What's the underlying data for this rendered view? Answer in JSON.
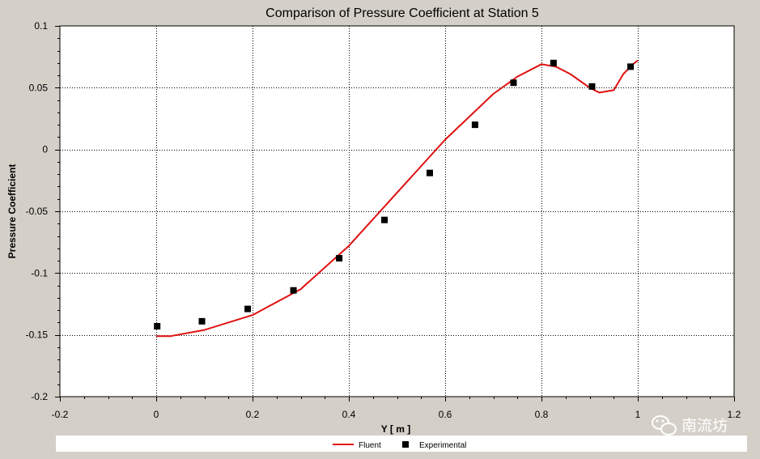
{
  "chart_data": {
    "type": "line",
    "title": "Comparison of Pressure Coefficient at Station 5",
    "xlabel": "Y [ m ]",
    "ylabel": "Pressure Coefficient",
    "xlim": [
      -0.2,
      1.2
    ],
    "ylim": [
      -0.2,
      0.1
    ],
    "xticks": [
      -0.2,
      0,
      0.2,
      0.4,
      0.6,
      0.8,
      1,
      1.2
    ],
    "xtick_labels": [
      "-0.2",
      "0",
      "0.2",
      "0.4",
      "0.6",
      "0.8",
      "1",
      "1.2"
    ],
    "yticks": [
      -0.2,
      -0.15,
      -0.1,
      -0.05,
      0,
      0.05,
      0.1
    ],
    "ytick_labels": [
      "-0.2",
      "-0.15",
      "-0.1",
      "-0.05",
      "0",
      "0.05",
      "0.1"
    ],
    "grid": true,
    "legend_position": "bottom",
    "series": [
      {
        "name": "Fluent",
        "kind": "line",
        "color": "#e01010",
        "x": [
          0.0,
          0.03,
          0.1,
          0.2,
          0.3,
          0.4,
          0.5,
          0.6,
          0.7,
          0.75,
          0.8,
          0.83,
          0.86,
          0.9,
          0.92,
          0.95,
          0.97,
          0.99,
          1.0
        ],
        "y": [
          -0.151,
          -0.151,
          -0.146,
          -0.134,
          -0.113,
          -0.078,
          -0.035,
          0.008,
          0.045,
          0.059,
          0.069,
          0.067,
          0.061,
          0.05,
          0.046,
          0.048,
          0.061,
          0.069,
          0.072
        ]
      },
      {
        "name": "Experimental",
        "kind": "scatter",
        "color": "#000000",
        "x": [
          0.002,
          0.095,
          0.19,
          0.285,
          0.38,
          0.474,
          0.568,
          0.662,
          0.742,
          0.825,
          0.905,
          0.985
        ],
        "y": [
          -0.143,
          -0.139,
          -0.129,
          -0.114,
          -0.088,
          -0.057,
          -0.019,
          0.02,
          0.054,
          0.07,
          0.051,
          0.067
        ]
      }
    ]
  },
  "watermark": {
    "text": "南流坊",
    "icon": "wechat-icon"
  }
}
